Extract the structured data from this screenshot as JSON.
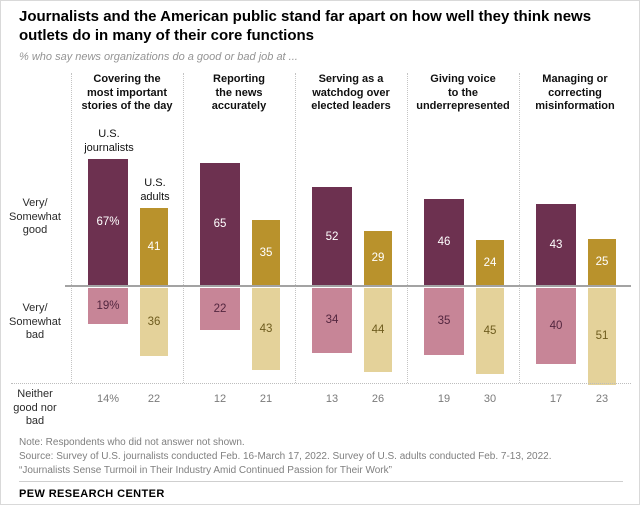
{
  "title": "Journalists and the American public stand far apart on how well they think news\noutlets do in many of their core functions",
  "subtitle": "% who say news organizations do a good or bad job at ...",
  "rows": {
    "good": "Very/\nSomewhat\ngood",
    "bad": "Very/\nSomewhat\nbad",
    "neither": "Neither\ngood nor\nbad"
  },
  "legend": {
    "journalists": "U.S.\njournalists",
    "adults": "U.S.\nadults"
  },
  "colors": {
    "journalists_good": "#6d3150",
    "journalists_bad": "#c78597",
    "adults_good": "#b9922c",
    "adults_bad": "#e4d29a",
    "journalists_bad_text": "#53263f",
    "adults_bad_text": "#6e5c1e",
    "good_label_text": "#ffffff",
    "axis_line": "#a3a3a3",
    "dotted_line": "#c4c4c4",
    "neither_text": "#7a7a7a"
  },
  "chart_data": {
    "type": "bar",
    "variant": "diverging-grouped",
    "unit": "%",
    "series_names": [
      "U.S. journalists",
      "U.S. adults"
    ],
    "sections": [
      "Very/Somewhat good",
      "Very/Somewhat bad",
      "Neither good nor bad"
    ],
    "categories": [
      "Covering the most important stories of the day",
      "Reporting the news accurately",
      "Serving as a watchdog over elected leaders",
      "Giving voice to the underrepresented",
      "Managing or correcting misinformation"
    ],
    "groups": [
      {
        "category": "Covering the\nmost important\nstories of the day",
        "journalists": {
          "good": 67,
          "bad": 19,
          "neither": 14,
          "labels": {
            "good": "67%",
            "bad": "19%",
            "neither": "14%"
          }
        },
        "adults": {
          "good": 41,
          "bad": 36,
          "neither": 22,
          "labels": {
            "good": "41",
            "bad": "36",
            "neither": "22"
          }
        }
      },
      {
        "category": "Reporting\nthe news\naccurately",
        "journalists": {
          "good": 65,
          "bad": 22,
          "neither": 12,
          "labels": {
            "good": "65",
            "bad": "22",
            "neither": "12"
          }
        },
        "adults": {
          "good": 35,
          "bad": 43,
          "neither": 21,
          "labels": {
            "good": "35",
            "bad": "43",
            "neither": "21"
          }
        }
      },
      {
        "category": "Serving as a\nwatchdog over\nelected leaders",
        "journalists": {
          "good": 52,
          "bad": 34,
          "neither": 13,
          "labels": {
            "good": "52",
            "bad": "34",
            "neither": "13"
          }
        },
        "adults": {
          "good": 29,
          "bad": 44,
          "neither": 26,
          "labels": {
            "good": "29",
            "bad": "44",
            "neither": "26"
          }
        }
      },
      {
        "category": "Giving voice\nto the\nunderrepresented",
        "journalists": {
          "good": 46,
          "bad": 35,
          "neither": 19,
          "labels": {
            "good": "46",
            "bad": "35",
            "neither": "19"
          }
        },
        "adults": {
          "good": 24,
          "bad": 45,
          "neither": 30,
          "labels": {
            "good": "24",
            "bad": "45",
            "neither": "30"
          }
        }
      },
      {
        "category": "Managing or\ncorrecting\nmisinformation",
        "journalists": {
          "good": 43,
          "bad": 40,
          "neither": 17,
          "labels": {
            "good": "43",
            "bad": "40",
            "neither": "17"
          }
        },
        "adults": {
          "good": 25,
          "bad": 51,
          "neither": 23,
          "labels": {
            "good": "25",
            "bad": "51",
            "neither": "23"
          }
        }
      }
    ]
  },
  "notes": {
    "note": "Note: Respondents who did not answer not shown.",
    "source": "Source: Survey of U.S. journalists conducted Feb. 16-March 17, 2022. Survey of U.S. adults conducted Feb. 7-13, 2022.",
    "report": "“Journalists Sense Turmoil in Their Industry Amid Continued Passion for Their Work”"
  },
  "footer": "PEW RESEARCH CENTER"
}
